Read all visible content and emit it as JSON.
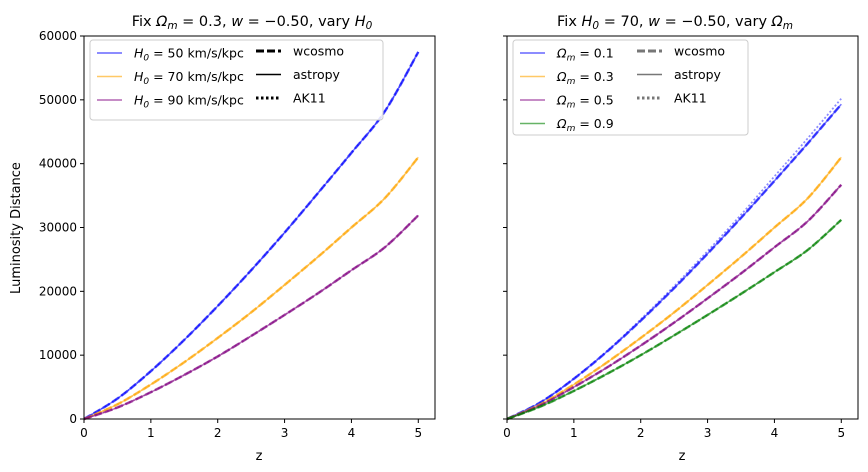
{
  "chart_data": [
    {
      "type": "line",
      "title": "Fix Ωm = 0.3, w = −0.50, vary H0",
      "title_parts": {
        "pre": "Fix ",
        "om_sym": "Ω",
        "om_sub": "m",
        "om_val": " = 0.3, ",
        "w_sym": "w",
        "w_val": " = −0.50, vary ",
        "h_sym": "H",
        "h_sub": "0"
      },
      "xlabel": "z",
      "ylabel": "Luminosity Distance",
      "xlim": [
        0,
        5.25
      ],
      "ylim": [
        0,
        60000
      ],
      "xticks": [
        0,
        1,
        2,
        3,
        4,
        5
      ],
      "yticks": [
        0,
        10000,
        20000,
        30000,
        40000,
        50000,
        60000
      ],
      "grid": false,
      "legend_placement": "upper-left",
      "x": [
        0,
        0.5,
        1,
        1.5,
        2,
        2.5,
        3,
        3.5,
        4,
        4.5,
        5
      ],
      "series": [
        {
          "name": "H0 = 50 km/s/kpc",
          "label_pre": "H",
          "label_sub": "0",
          "label_post": " = 50 km/s/kpc",
          "color": "#0000ff",
          "values": [
            0,
            3200,
            7500,
            12400,
            17700,
            23300,
            29200,
            35400,
            41700,
            48200,
            57500
          ]
        },
        {
          "name": "H0 = 70 km/s/kpc",
          "label_pre": "H",
          "label_sub": "0",
          "label_post": " = 70 km/s/kpc",
          "color": "#ffa500",
          "values": [
            0,
            2300,
            5400,
            8900,
            12700,
            16700,
            21000,
            25400,
            30000,
            34600,
            41000
          ]
        },
        {
          "name": "H0 = 90 km/s/kpc",
          "label_pre": "H",
          "label_sub": "0",
          "label_post": " = 90 km/s/kpc",
          "color": "#800080",
          "values": [
            0,
            1800,
            4200,
            6900,
            9800,
            13000,
            16300,
            19700,
            23300,
            26900,
            31900
          ]
        }
      ],
      "style_legend": [
        {
          "name": "wcosmo",
          "style": "dashed"
        },
        {
          "name": "astropy",
          "style": "solid"
        },
        {
          "name": "AK11",
          "style": "dotted"
        }
      ]
    },
    {
      "type": "line",
      "title": "Fix H0 = 70, w = −0.50, vary Ωm",
      "title_parts": {
        "pre": "Fix ",
        "h_sym": "H",
        "h_sub": "0",
        "h_val": " = 70, ",
        "w_sym": "w",
        "w_val": " = −0.50, vary ",
        "om_sym": "Ω",
        "om_sub": "m"
      },
      "xlabel": "z",
      "ylabel": "",
      "xlim": [
        0,
        5.25
      ],
      "ylim": [
        0,
        60000
      ],
      "xticks": [
        0,
        1,
        2,
        3,
        4,
        5
      ],
      "yticks": [
        0,
        10000,
        20000,
        30000,
        40000,
        50000,
        60000
      ],
      "grid": false,
      "legend_placement": "upper-left",
      "x": [
        0,
        0.5,
        1,
        1.5,
        2,
        2.5,
        3,
        3.5,
        4,
        4.5,
        5
      ],
      "series": [
        {
          "name": "Ωm = 0.1",
          "label_pre": "Ω",
          "label_sub": "m",
          "label_post": " = 0.1",
          "color": "#0000ff",
          "values": [
            0,
            2600,
            6300,
            10600,
            15400,
            20500,
            25900,
            31500,
            37300,
            43200,
            49300
          ]
        },
        {
          "name": "Ωm = 0.3",
          "label_pre": "Ω",
          "label_sub": "m",
          "label_post": " = 0.3",
          "color": "#ffa500",
          "values": [
            0,
            2300,
            5400,
            8900,
            12700,
            16700,
            21000,
            25400,
            30000,
            34600,
            41000
          ]
        },
        {
          "name": "Ωm = 0.5",
          "label_pre": "Ω",
          "label_sub": "m",
          "label_post": " = 0.5",
          "color": "#800080",
          "values": [
            0,
            2150,
            5000,
            8100,
            11500,
            15100,
            18900,
            22800,
            26900,
            31000,
            36700
          ]
        },
        {
          "name": "Ωm = 0.9",
          "label_pre": "Ω",
          "label_sub": "m",
          "label_post": " = 0.9",
          "color": "#008000",
          "values": [
            0,
            1950,
            4400,
            7100,
            10000,
            13100,
            16300,
            19600,
            23000,
            26500,
            31200
          ]
        }
      ],
      "ak11_upper": {
        "color": "#0000ff",
        "values": [
          0,
          2620,
          6350,
          10700,
          15600,
          20800,
          26300,
          32000,
          38000,
          44000,
          50200
        ]
      },
      "style_legend": [
        {
          "name": "wcosmo",
          "style": "dashed"
        },
        {
          "name": "astropy",
          "style": "solid"
        },
        {
          "name": "AK11",
          "style": "dotted"
        }
      ]
    }
  ]
}
